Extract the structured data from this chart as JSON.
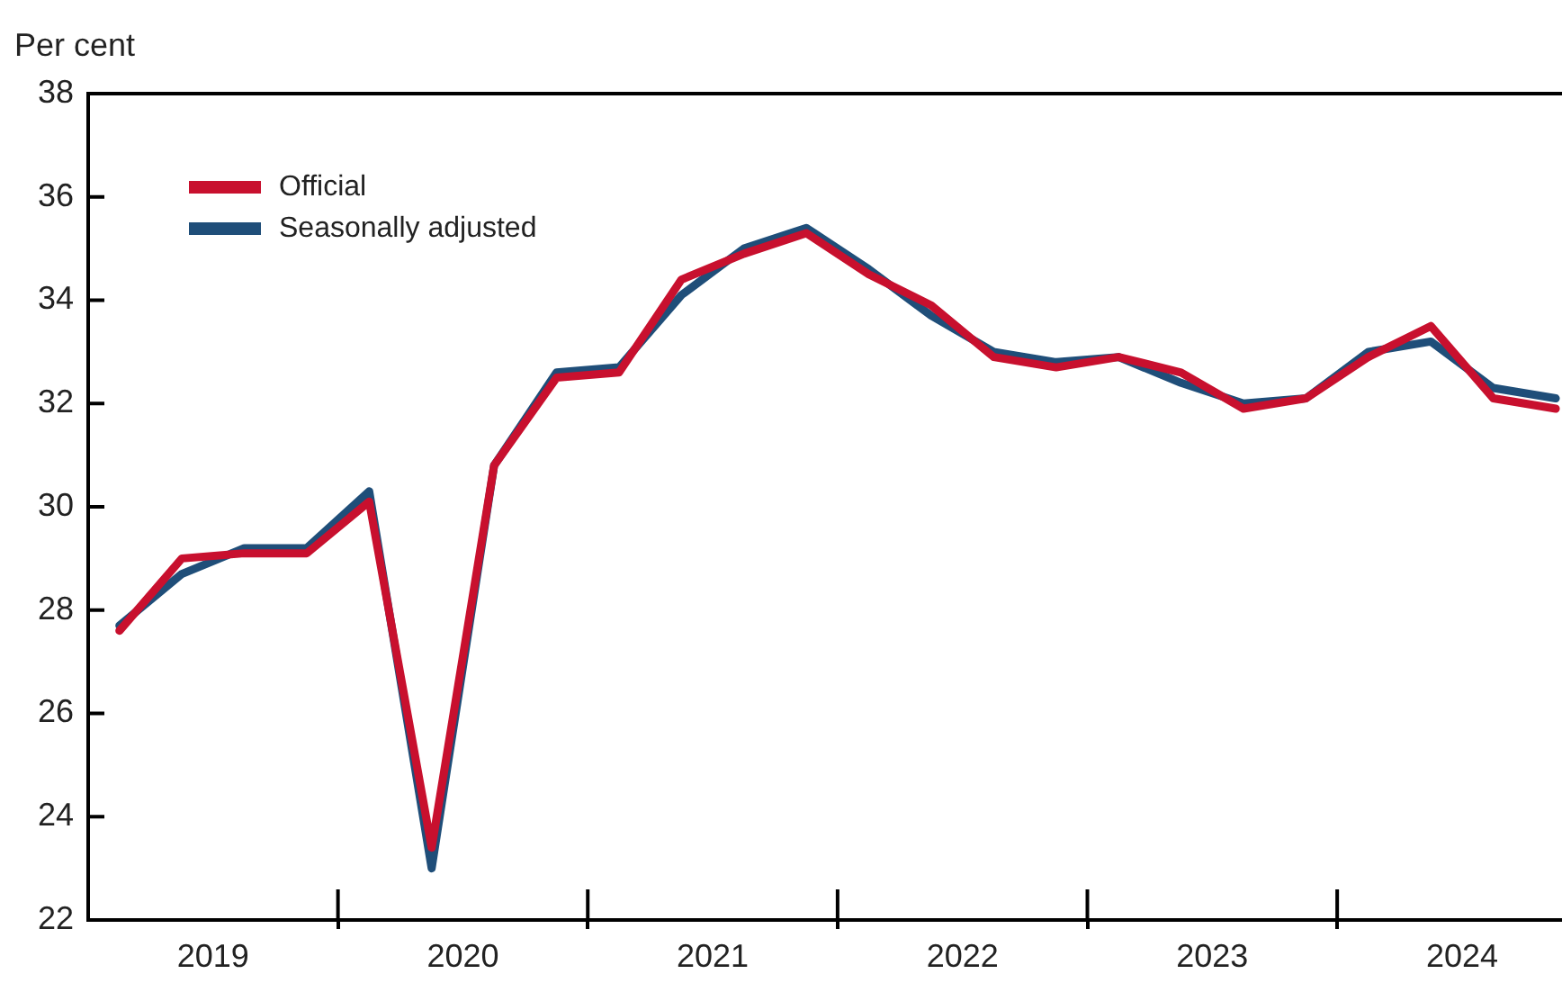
{
  "chart_data": {
    "type": "line",
    "ylabel": "Per cent",
    "legend": "top left",
    "grid": false,
    "marker": "none",
    "line_style": "solid",
    "x": [
      2019.125,
      2019.375,
      2019.625,
      2019.875,
      2020.125,
      2020.375,
      2020.625,
      2020.875,
      2021.125,
      2021.375,
      2021.625,
      2021.875,
      2022.125,
      2022.375,
      2022.625,
      2022.875,
      2023.125,
      2023.375,
      2023.625,
      2023.875,
      2024.125,
      2024.375,
      2024.625,
      2024.875
    ],
    "xlim": [
      2019,
      2024.9
    ],
    "xticks": [
      {
        "value": 2019.5,
        "label": "2019"
      },
      {
        "value": 2020,
        "label": null
      },
      {
        "value": 2020.5,
        "label": "2020"
      },
      {
        "value": 2021,
        "label": null
      },
      {
        "value": 2021.5,
        "label": "2021"
      },
      {
        "value": 2022,
        "label": null
      },
      {
        "value": 2022.5,
        "label": "2022"
      },
      {
        "value": 2023,
        "label": null
      },
      {
        "value": 2023.5,
        "label": "2023"
      },
      {
        "value": 2024,
        "label": null
      },
      {
        "value": 2024.5,
        "label": "2024"
      }
    ],
    "ylim": [
      22,
      38
    ],
    "yticks": [
      22,
      24,
      26,
      28,
      30,
      32,
      34,
      36,
      38
    ],
    "series": [
      {
        "name": "Official",
        "color": "#c8102e",
        "values": [
          27.6,
          29.0,
          29.1,
          29.1,
          30.1,
          23.4,
          30.8,
          32.5,
          32.6,
          34.4,
          34.9,
          35.3,
          34.5,
          33.9,
          32.9,
          32.7,
          32.9,
          32.6,
          31.9,
          32.1,
          32.9,
          33.5,
          32.1,
          31.9
        ]
      },
      {
        "name": "Seasonally adjusted",
        "color": "#1f4e79",
        "values": [
          27.7,
          28.7,
          29.2,
          29.2,
          30.3,
          23.0,
          30.8,
          32.6,
          32.7,
          34.1,
          35.0,
          35.4,
          34.6,
          33.7,
          33.0,
          32.8,
          32.9,
          32.4,
          32.0,
          32.1,
          33.0,
          33.2,
          32.3,
          32.1
        ]
      }
    ]
  }
}
